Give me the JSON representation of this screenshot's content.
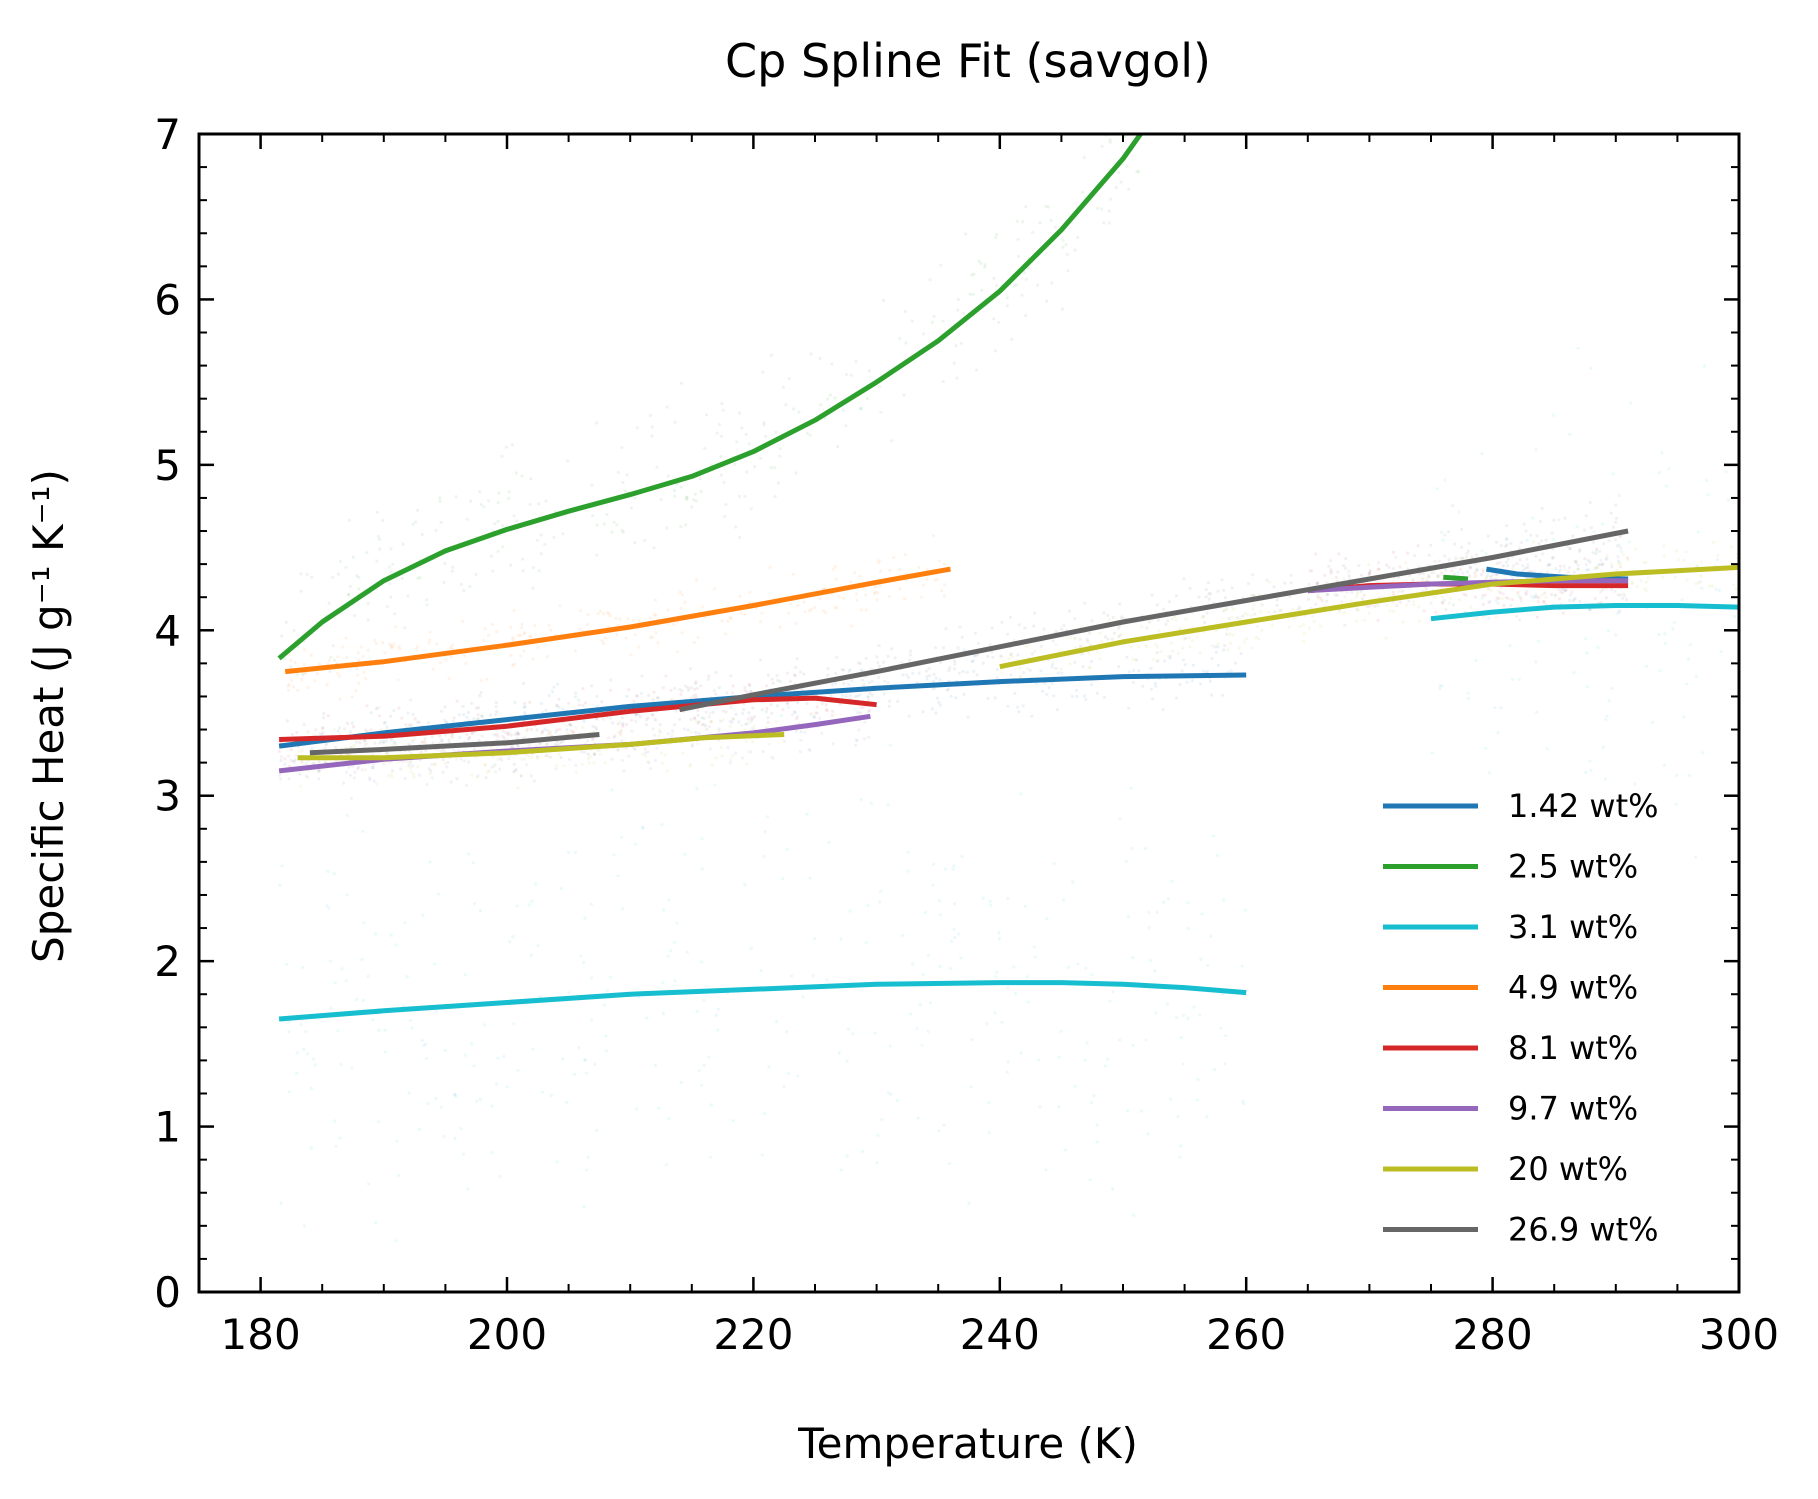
{
  "chart_data": {
    "type": "line",
    "title": "Cp Spline Fit (savgol)",
    "xlabel": "Temperature (K)",
    "ylabel": "Specific Heat (J g⁻¹ K⁻¹)",
    "xlim": [
      175,
      300
    ],
    "ylim": [
      0,
      7
    ],
    "xticks": [
      "180",
      "200",
      "220",
      "240",
      "260",
      "280",
      "300"
    ],
    "yticks": [
      "0",
      "1",
      "2",
      "3",
      "4",
      "5",
      "6",
      "7"
    ],
    "grid": false,
    "legend_position": "lower-right",
    "series": [
      {
        "name": "1.42 wt%",
        "color": "#1f77b4",
        "segments": [
          [
            [
              181.5,
              3.3
            ],
            [
              190,
              3.38
            ],
            [
              200,
              3.46
            ],
            [
              210,
              3.54
            ],
            [
              220,
              3.6
            ],
            [
              230,
              3.65
            ],
            [
              240,
              3.69
            ],
            [
              250,
              3.72
            ],
            [
              260,
              3.73
            ]
          ],
          [
            [
              279.5,
              4.37
            ],
            [
              282,
              4.34
            ],
            [
              286,
              4.32
            ],
            [
              291,
              4.31
            ]
          ]
        ]
      },
      {
        "name": "2.5 wt%",
        "color": "#2ca02c",
        "segments": [
          [
            [
              181.5,
              3.83
            ],
            [
              185,
              4.05
            ],
            [
              190,
              4.3
            ],
            [
              195,
              4.48
            ],
            [
              200,
              4.61
            ],
            [
              205,
              4.72
            ],
            [
              210,
              4.82
            ],
            [
              215,
              4.93
            ],
            [
              220,
              5.08
            ],
            [
              225,
              5.27
            ],
            [
              230,
              5.5
            ],
            [
              235,
              5.75
            ],
            [
              240,
              6.05
            ],
            [
              245,
              6.42
            ],
            [
              250,
              6.85
            ],
            [
              252,
              7.06
            ]
          ],
          [
            [
              276,
              4.32
            ],
            [
              278,
              4.31
            ]
          ]
        ]
      },
      {
        "name": "3.1 wt%",
        "color": "#17becf",
        "segments": [
          [
            [
              181.5,
              1.65
            ],
            [
              190,
              1.7
            ],
            [
              200,
              1.75
            ],
            [
              210,
              1.8
            ],
            [
              220,
              1.83
            ],
            [
              230,
              1.86
            ],
            [
              240,
              1.87
            ],
            [
              245,
              1.87
            ],
            [
              250,
              1.86
            ],
            [
              255,
              1.84
            ],
            [
              260,
              1.81
            ]
          ],
          [
            [
              275,
              4.07
            ],
            [
              280,
              4.11
            ],
            [
              285,
              4.14
            ],
            [
              290,
              4.15
            ],
            [
              295,
              4.15
            ],
            [
              300,
              4.14
            ]
          ]
        ]
      },
      {
        "name": "4.9 wt%",
        "color": "#ff7f0e",
        "segments": [
          [
            [
              182,
              3.75
            ],
            [
              190,
              3.81
            ],
            [
              200,
              3.91
            ],
            [
              210,
              4.02
            ],
            [
              220,
              4.15
            ],
            [
              230,
              4.29
            ],
            [
              236,
              4.37
            ]
          ]
        ]
      },
      {
        "name": "8.1 wt%",
        "color": "#d62728",
        "segments": [
          [
            [
              181.5,
              3.34
            ],
            [
              190,
              3.36
            ],
            [
              200,
              3.42
            ],
            [
              210,
              3.51
            ],
            [
              220,
              3.58
            ],
            [
              225,
              3.59
            ],
            [
              230,
              3.55
            ]
          ],
          [
            [
              265,
              4.24
            ],
            [
              270,
              4.27
            ],
            [
              275,
              4.28
            ],
            [
              280,
              4.28
            ],
            [
              285,
              4.27
            ],
            [
              291,
              4.27
            ]
          ]
        ]
      },
      {
        "name": "9.7 wt%",
        "color": "#9467bd",
        "segments": [
          [
            [
              181.5,
              3.15
            ],
            [
              190,
              3.22
            ],
            [
              200,
              3.27
            ],
            [
              210,
              3.31
            ],
            [
              220,
              3.38
            ],
            [
              225,
              3.43
            ],
            [
              229.5,
              3.48
            ]
          ],
          [
            [
              265,
              4.24
            ],
            [
              270,
              4.26
            ],
            [
              275,
              4.28
            ],
            [
              280,
              4.29
            ],
            [
              285,
              4.3
            ],
            [
              291,
              4.3
            ]
          ]
        ]
      },
      {
        "name": "20 wt%",
        "color": "#bcbd22",
        "segments": [
          [
            [
              183,
              3.23
            ],
            [
              190,
              3.23
            ],
            [
              200,
              3.26
            ],
            [
              210,
              3.31
            ],
            [
              216,
              3.35
            ],
            [
              222.5,
              3.37
            ]
          ],
          [
            [
              240,
              3.78
            ],
            [
              250,
              3.93
            ],
            [
              260,
              4.05
            ],
            [
              270,
              4.17
            ],
            [
              280,
              4.28
            ],
            [
              290,
              4.34
            ],
            [
              300,
              4.38
            ]
          ]
        ]
      },
      {
        "name": "26.9 wt%",
        "color": "#666666",
        "segments": [
          [
            [
              184,
              3.26
            ],
            [
              190,
              3.28
            ],
            [
              200,
              3.32
            ],
            [
              207.5,
              3.37
            ]
          ],
          [
            [
              214,
              3.52
            ],
            [
              220,
              3.61
            ],
            [
              230,
              3.75
            ],
            [
              240,
              3.9
            ],
            [
              250,
              4.05
            ],
            [
              260,
              4.18
            ],
            [
              270,
              4.31
            ],
            [
              280,
              4.44
            ],
            [
              291,
              4.6
            ]
          ]
        ]
      }
    ]
  }
}
